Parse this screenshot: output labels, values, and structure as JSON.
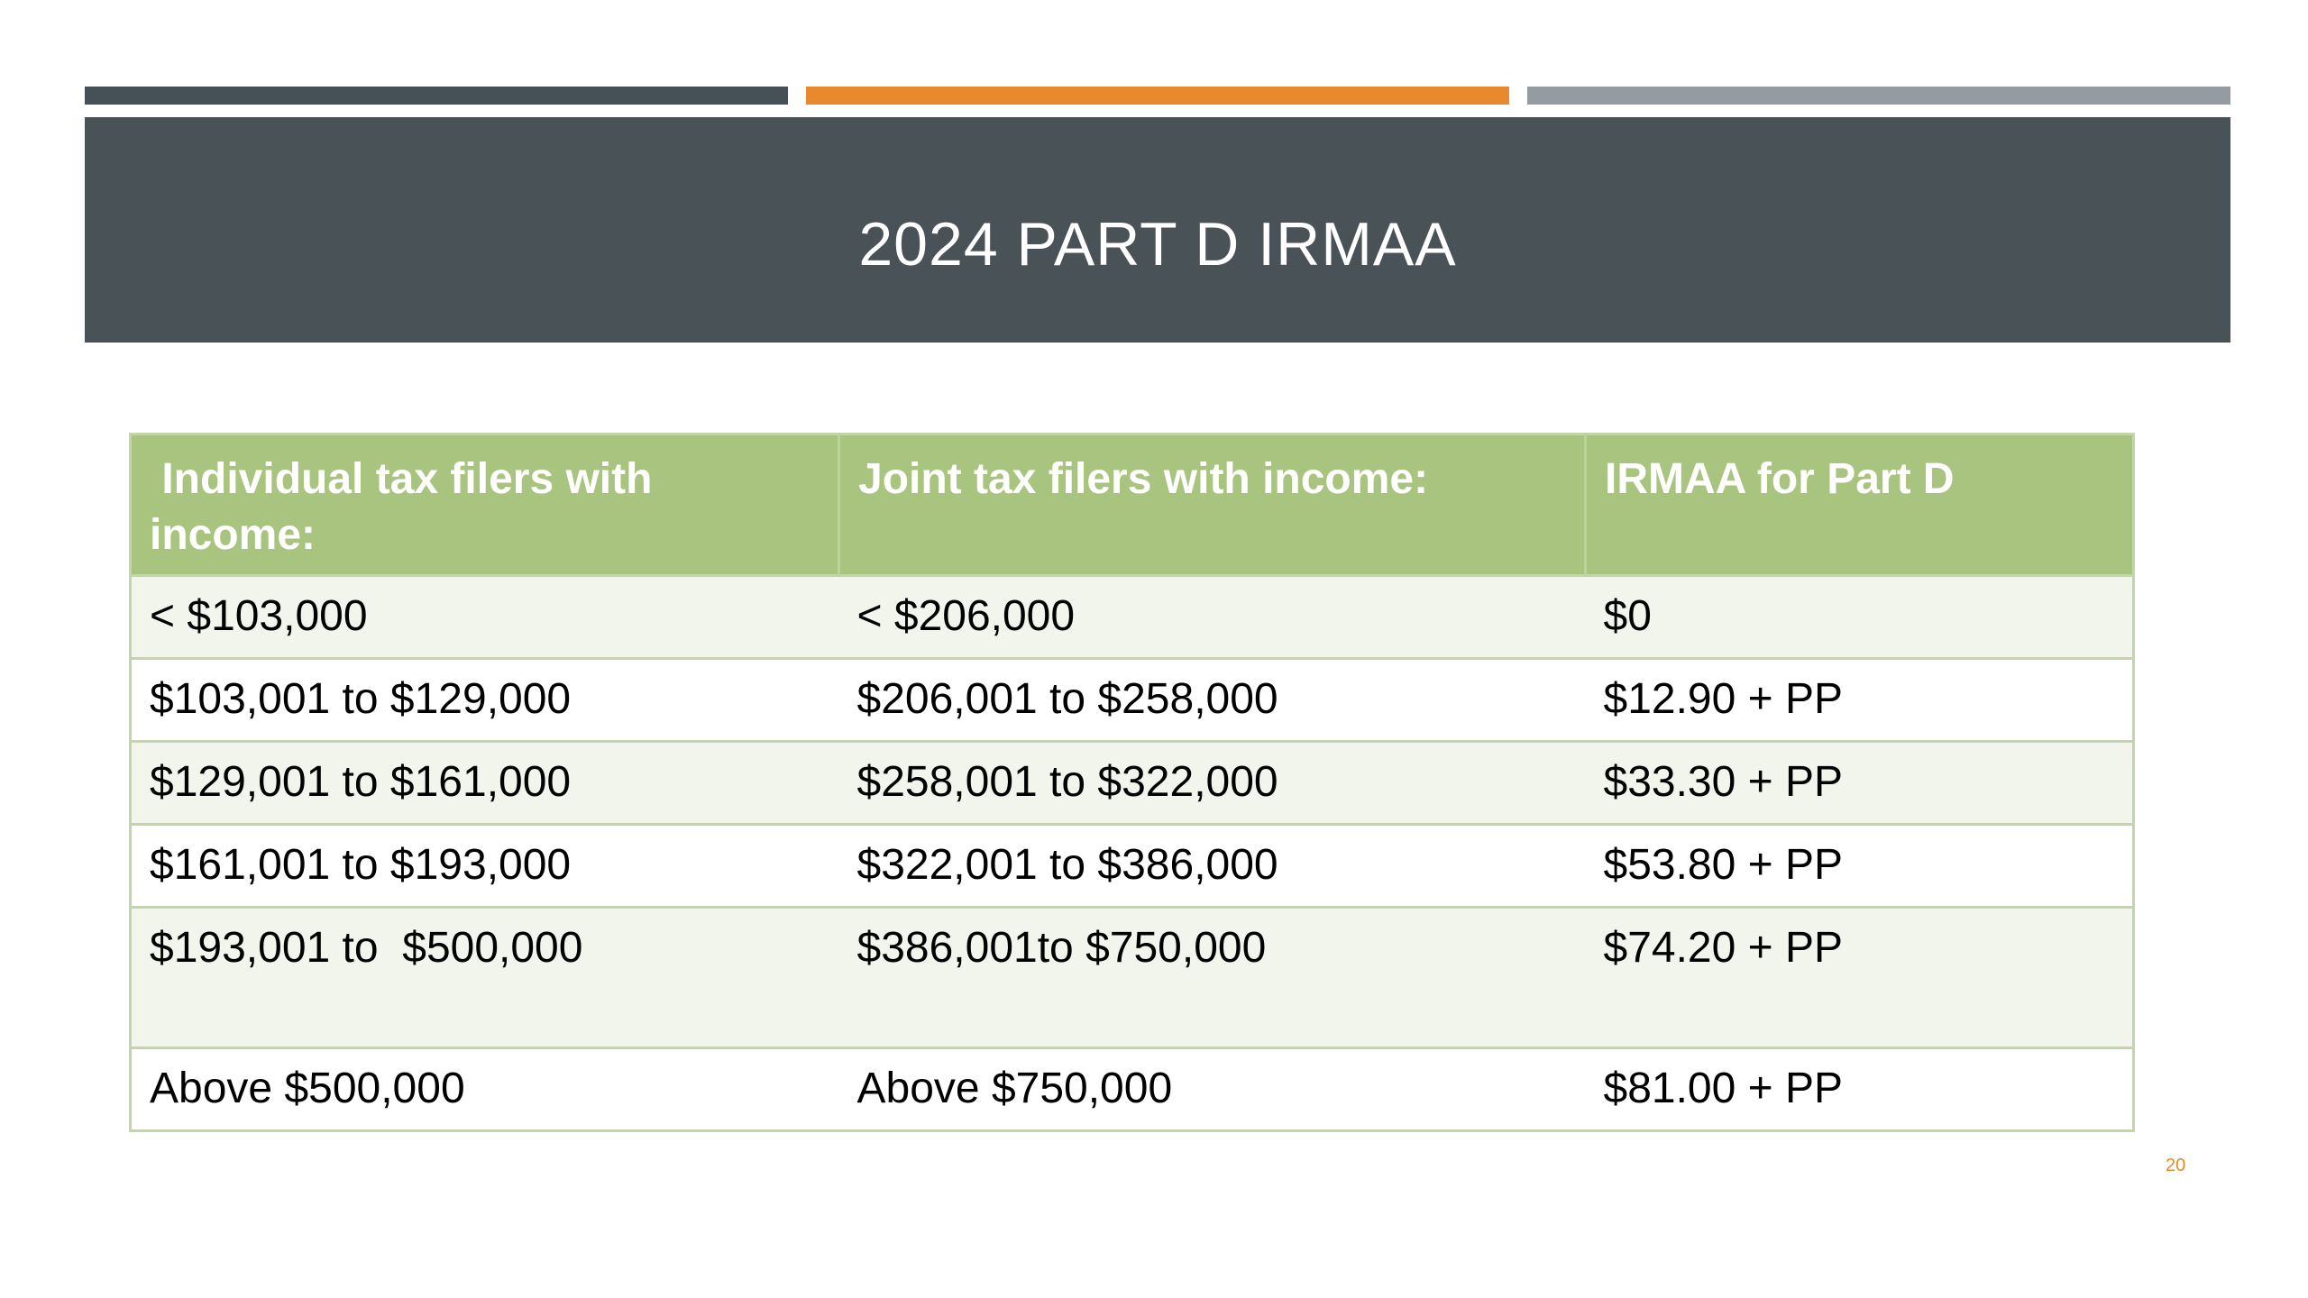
{
  "slide": {
    "title": "2024 PART D IRMAA",
    "page_number": "20",
    "colors": {
      "accent_dark": "#455057",
      "accent_orange": "#e8892d",
      "accent_gray": "#949ca1",
      "banner": "#485257",
      "table_header": "#a9c47f",
      "row_band": "#f1f5eb"
    }
  },
  "table": {
    "headers": [
      " Individual tax filers with income:",
      "Joint tax filers with income:",
      "IRMAA for Part D"
    ],
    "rows": [
      [
        "< $103,000",
        "< $206,000",
        "$0"
      ],
      [
        "$103,001 to $129,000",
        "$206,001 to $258,000",
        "$12.90 + PP"
      ],
      [
        "$129,001 to $161,000",
        "$258,001 to $322,000",
        "$33.30 + PP"
      ],
      [
        "$161,001 to $193,000",
        "$322,001 to $386,000",
        "$53.80 + PP"
      ],
      [
        "$193,001 to  $500,000",
        "$386,001to $750,000",
        "$74.20 + PP"
      ],
      [
        "Above $500,000",
        "Above $750,000",
        "$81.00 + PP"
      ]
    ]
  }
}
